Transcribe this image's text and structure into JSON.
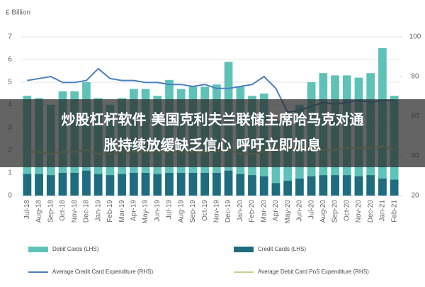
{
  "chart_data": {
    "type": "bar-line",
    "y_label": "£ Billion",
    "categories": [
      "Jul-18",
      "Aug-18",
      "Sep-18",
      "Oct-18",
      "Nov-18",
      "Dec-18",
      "Jan-19",
      "Feb-19",
      "Mar-19",
      "Apr-19",
      "May-19",
      "Jun-19",
      "Jul-19",
      "Aug-19",
      "Sep-19",
      "Oct-19",
      "Nov-19",
      "Dec-19",
      "Jan-20",
      "Feb-20",
      "Mar-20",
      "Apr-20",
      "May-20",
      "Jun-20",
      "Jul-20",
      "Aug-20",
      "Sep-20",
      "Oct-20",
      "Nov-20",
      "Dec-20",
      "Jan-21",
      "Feb-21"
    ],
    "series": [
      {
        "name": "Debit Cards (LHS)",
        "kind": "bar",
        "color": "#5fc2b8",
        "values": [
          4.4,
          4.3,
          4.0,
          4.6,
          4.6,
          5.0,
          4.3,
          4.0,
          4.3,
          4.7,
          4.7,
          4.4,
          5.1,
          4.7,
          4.8,
          4.8,
          4.9,
          5.9,
          4.8,
          4.4,
          4.5,
          3.3,
          3.6,
          4.0,
          5.0,
          5.4,
          5.3,
          5.3,
          5.2,
          5.4,
          6.5,
          4.4
        ]
      },
      {
        "name": "Credit Cards (LHS)",
        "kind": "bar",
        "color": "#1f6b80",
        "values": [
          0.95,
          0.95,
          0.9,
          1.0,
          1.0,
          1.1,
          0.95,
          0.9,
          0.95,
          1.0,
          1.0,
          0.95,
          1.0,
          1.0,
          1.0,
          1.0,
          1.0,
          1.1,
          0.95,
          0.9,
          0.85,
          0.55,
          0.65,
          0.75,
          0.85,
          0.9,
          0.9,
          0.9,
          0.85,
          0.9,
          0.75,
          0.7
        ]
      },
      {
        "name": "Average Credit Card Expenditure (RHS)",
        "kind": "line",
        "axis": "y2",
        "color": "#4a7fc1",
        "values": [
          78,
          79,
          80,
          77,
          77,
          78,
          84,
          79,
          78,
          78,
          77,
          77,
          76,
          76,
          75,
          76,
          74,
          74,
          75,
          76,
          80,
          74,
          62,
          63,
          65,
          67,
          66,
          67,
          68,
          67,
          68,
          68
        ]
      },
      {
        "name": "Average Debit Card PoS Expenditure (RHS)",
        "kind": "line",
        "axis": "y2",
        "color": "#c9d08c",
        "values": [
          42,
          42,
          41,
          42,
          42,
          43,
          41,
          41,
          42,
          42,
          42,
          42,
          42,
          42,
          42,
          42,
          42,
          43,
          41,
          41,
          42,
          44,
          45,
          44,
          44,
          43,
          43,
          44,
          44,
          44,
          45,
          43
        ]
      }
    ],
    "ylim": [
      0,
      7
    ],
    "yticks": [
      0,
      1,
      2,
      3,
      4,
      5,
      6,
      7
    ],
    "y2lim": [
      20,
      100
    ],
    "y2ticks": [
      20,
      40,
      60,
      80,
      100
    ],
    "grid": true
  },
  "banner": {
    "lines": [
      "炒股杠杆软件 美国克利夫兰联储主席哈马克对通",
      "胀持续放缓缺乏信心 呼吁立即加息"
    ]
  }
}
